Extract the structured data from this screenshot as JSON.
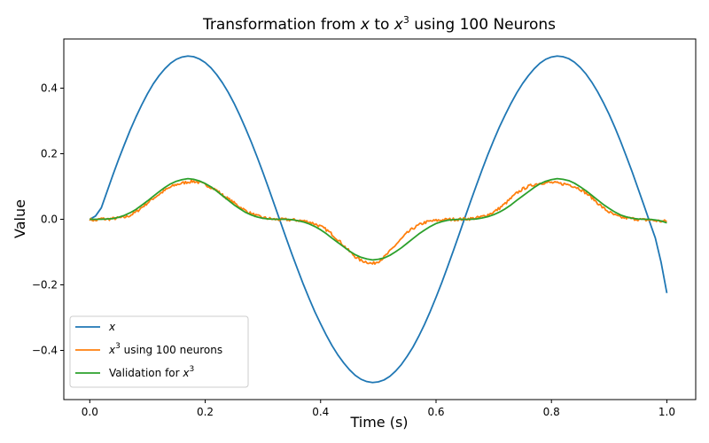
{
  "chart_data": {
    "type": "line",
    "title": {
      "before": "Transformation from ",
      "var1": "x",
      "middle": " to ",
      "var2": "x",
      "sup": "3",
      "after": " using 100 Neurons"
    },
    "xlabel": "Time (s)",
    "ylabel": "Value",
    "xlim": [
      -0.045,
      1.05
    ],
    "ylim": [
      -0.55,
      0.55
    ],
    "xticks": [
      {
        "value": 0.0,
        "label": "0.0"
      },
      {
        "value": 0.2,
        "label": "0.2"
      },
      {
        "value": 0.4,
        "label": "0.4"
      },
      {
        "value": 0.6,
        "label": "0.6"
      },
      {
        "value": 0.8,
        "label": "0.8"
      },
      {
        "value": 1.0,
        "label": "1.0"
      }
    ],
    "yticks": [
      {
        "value": -0.4,
        "label": "−0.4"
      },
      {
        "value": -0.2,
        "label": "−0.2"
      },
      {
        "value": 0.0,
        "label": "0.0"
      },
      {
        "value": 0.2,
        "label": "0.2"
      },
      {
        "value": 0.4,
        "label": "0.4"
      }
    ],
    "grid": false,
    "legend_position": "lower-left",
    "series": [
      {
        "name": "x",
        "legend": {
          "italic": "x",
          "plain": ""
        },
        "color": "#1f77b4",
        "x": [
          0.0,
          0.01,
          0.02,
          0.03,
          0.04,
          0.05,
          0.06,
          0.07,
          0.08,
          0.09,
          0.1,
          0.11,
          0.12,
          0.13,
          0.14,
          0.15,
          0.16,
          0.17,
          0.18,
          0.19,
          0.2,
          0.21,
          0.22,
          0.23,
          0.24,
          0.25,
          0.26,
          0.27,
          0.28,
          0.29,
          0.3,
          0.31,
          0.32,
          0.33,
          0.34,
          0.35,
          0.36,
          0.37,
          0.38,
          0.39,
          0.4,
          0.41,
          0.42,
          0.43,
          0.44,
          0.45,
          0.46,
          0.47,
          0.48,
          0.49,
          0.5,
          0.51,
          0.52,
          0.53,
          0.54,
          0.55,
          0.56,
          0.57,
          0.58,
          0.59,
          0.6,
          0.61,
          0.62,
          0.63,
          0.64,
          0.65,
          0.66,
          0.67,
          0.68,
          0.69,
          0.7,
          0.71,
          0.72,
          0.73,
          0.74,
          0.75,
          0.76,
          0.77,
          0.78,
          0.79,
          0.8,
          0.81,
          0.82,
          0.83,
          0.84,
          0.85,
          0.86,
          0.87,
          0.88,
          0.89,
          0.9,
          0.91,
          0.92,
          0.93,
          0.94,
          0.95,
          0.96,
          0.97,
          0.98,
          0.99,
          1.0
        ],
        "y": [
          0.0,
          0.01,
          0.035,
          0.085,
          0.135,
          0.183,
          0.228,
          0.272,
          0.312,
          0.349,
          0.383,
          0.413,
          0.438,
          0.459,
          0.476,
          0.488,
          0.495,
          0.498,
          0.496,
          0.489,
          0.478,
          0.462,
          0.441,
          0.416,
          0.387,
          0.354,
          0.317,
          0.277,
          0.235,
          0.19,
          0.143,
          0.094,
          0.044,
          -0.006,
          -0.056,
          -0.105,
          -0.152,
          -0.198,
          -0.241,
          -0.282,
          -0.319,
          -0.354,
          -0.386,
          -0.414,
          -0.438,
          -0.459,
          -0.476,
          -0.488,
          -0.495,
          -0.498,
          -0.496,
          -0.49,
          -0.479,
          -0.463,
          -0.443,
          -0.418,
          -0.39,
          -0.357,
          -0.321,
          -0.281,
          -0.238,
          -0.193,
          -0.145,
          -0.096,
          -0.046,
          0.005,
          0.055,
          0.104,
          0.152,
          0.198,
          0.241,
          0.282,
          0.319,
          0.354,
          0.386,
          0.414,
          0.438,
          0.459,
          0.476,
          0.488,
          0.495,
          0.498,
          0.496,
          0.49,
          0.479,
          0.463,
          0.443,
          0.418,
          0.389,
          0.356,
          0.32,
          0.28,
          0.237,
          0.191,
          0.144,
          0.094,
          0.044,
          -0.007,
          -0.057,
          -0.131,
          -0.225
        ]
      },
      {
        "name": "x^3 using 100 neurons",
        "legend": {
          "italic": "x",
          "sup": "3",
          "plain": " using 100 neurons"
        },
        "color": "#ff7f0e",
        "noisy": true,
        "x": [
          0.0,
          0.01,
          0.02,
          0.03,
          0.04,
          0.05,
          0.06,
          0.07,
          0.08,
          0.09,
          0.1,
          0.11,
          0.12,
          0.13,
          0.14,
          0.15,
          0.16,
          0.17,
          0.18,
          0.19,
          0.2,
          0.21,
          0.22,
          0.23,
          0.24,
          0.25,
          0.26,
          0.27,
          0.28,
          0.29,
          0.3,
          0.31,
          0.32,
          0.33,
          0.34,
          0.35,
          0.36,
          0.37,
          0.38,
          0.39,
          0.4,
          0.41,
          0.42,
          0.43,
          0.44,
          0.45,
          0.46,
          0.47,
          0.48,
          0.49,
          0.5,
          0.51,
          0.52,
          0.53,
          0.54,
          0.55,
          0.56,
          0.57,
          0.58,
          0.59,
          0.6,
          0.61,
          0.62,
          0.63,
          0.64,
          0.65,
          0.66,
          0.67,
          0.68,
          0.69,
          0.7,
          0.71,
          0.72,
          0.73,
          0.74,
          0.75,
          0.76,
          0.77,
          0.78,
          0.79,
          0.8,
          0.81,
          0.82,
          0.83,
          0.84,
          0.85,
          0.86,
          0.87,
          0.88,
          0.89,
          0.9,
          0.91,
          0.92,
          0.93,
          0.94,
          0.95,
          0.96,
          0.97,
          0.98,
          0.99,
          1.0
        ],
        "y": [
          0.0,
          -0.004,
          0.002,
          0.0,
          0.002,
          0.004,
          0.006,
          0.012,
          0.022,
          0.036,
          0.05,
          0.064,
          0.076,
          0.088,
          0.098,
          0.106,
          0.11,
          0.114,
          0.116,
          0.112,
          0.106,
          0.098,
          0.088,
          0.074,
          0.062,
          0.05,
          0.038,
          0.026,
          0.017,
          0.01,
          0.005,
          0.002,
          0.0,
          -0.001,
          -0.001,
          -0.002,
          -0.003,
          -0.005,
          -0.008,
          -0.014,
          -0.022,
          -0.032,
          -0.046,
          -0.062,
          -0.08,
          -0.098,
          -0.114,
          -0.126,
          -0.13,
          -0.136,
          -0.128,
          -0.116,
          -0.098,
          -0.078,
          -0.06,
          -0.042,
          -0.028,
          -0.018,
          -0.01,
          -0.006,
          -0.004,
          -0.002,
          -0.001,
          0.0,
          0.0,
          0.001,
          0.002,
          0.004,
          0.008,
          0.014,
          0.022,
          0.034,
          0.048,
          0.064,
          0.08,
          0.092,
          0.1,
          0.106,
          0.11,
          0.112,
          0.112,
          0.11,
          0.108,
          0.106,
          0.1,
          0.092,
          0.08,
          0.066,
          0.05,
          0.034,
          0.022,
          0.012,
          0.006,
          0.004,
          0.002,
          0.0,
          -0.002,
          -0.002,
          -0.004,
          -0.006,
          -0.006
        ]
      },
      {
        "name": "Validation for x^3",
        "legend": {
          "plain": "Validation for ",
          "italic": "x",
          "sup": "3"
        },
        "color": "#2ca02c",
        "x": [
          0.0,
          0.01,
          0.02,
          0.03,
          0.04,
          0.05,
          0.06,
          0.07,
          0.08,
          0.09,
          0.1,
          0.11,
          0.12,
          0.13,
          0.14,
          0.15,
          0.16,
          0.17,
          0.18,
          0.19,
          0.2,
          0.21,
          0.22,
          0.23,
          0.24,
          0.25,
          0.26,
          0.27,
          0.28,
          0.29,
          0.3,
          0.31,
          0.32,
          0.33,
          0.34,
          0.35,
          0.36,
          0.37,
          0.38,
          0.39,
          0.4,
          0.41,
          0.42,
          0.43,
          0.44,
          0.45,
          0.46,
          0.47,
          0.48,
          0.49,
          0.5,
          0.51,
          0.52,
          0.53,
          0.54,
          0.55,
          0.56,
          0.57,
          0.58,
          0.59,
          0.6,
          0.61,
          0.62,
          0.63,
          0.64,
          0.65,
          0.66,
          0.67,
          0.68,
          0.69,
          0.7,
          0.71,
          0.72,
          0.73,
          0.74,
          0.75,
          0.76,
          0.77,
          0.78,
          0.79,
          0.8,
          0.81,
          0.82,
          0.83,
          0.84,
          0.85,
          0.86,
          0.87,
          0.88,
          0.89,
          0.9,
          0.91,
          0.92,
          0.93,
          0.94,
          0.95,
          0.96,
          0.97,
          0.98,
          0.99,
          1.0
        ],
        "y": [
          0.0,
          0.0,
          0.0,
          0.001,
          0.002,
          0.006,
          0.012,
          0.02,
          0.03,
          0.043,
          0.056,
          0.07,
          0.084,
          0.097,
          0.108,
          0.116,
          0.121,
          0.124,
          0.122,
          0.117,
          0.109,
          0.099,
          0.086,
          0.072,
          0.058,
          0.044,
          0.032,
          0.021,
          0.013,
          0.007,
          0.003,
          0.001,
          0.0,
          0.0,
          0.0,
          -0.001,
          -0.004,
          -0.008,
          -0.014,
          -0.022,
          -0.032,
          -0.044,
          -0.058,
          -0.071,
          -0.084,
          -0.097,
          -0.108,
          -0.116,
          -0.121,
          -0.124,
          -0.122,
          -0.118,
          -0.11,
          -0.099,
          -0.087,
          -0.073,
          -0.059,
          -0.045,
          -0.033,
          -0.022,
          -0.013,
          -0.007,
          -0.003,
          -0.001,
          0.0,
          0.0,
          0.0,
          0.001,
          0.004,
          0.008,
          0.014,
          0.022,
          0.032,
          0.044,
          0.058,
          0.071,
          0.084,
          0.097,
          0.108,
          0.116,
          0.121,
          0.124,
          0.122,
          0.118,
          0.11,
          0.099,
          0.087,
          0.073,
          0.059,
          0.045,
          0.033,
          0.022,
          0.013,
          0.007,
          0.003,
          0.001,
          0.0,
          0.0,
          -0.002,
          -0.005,
          -0.011
        ]
      }
    ]
  }
}
